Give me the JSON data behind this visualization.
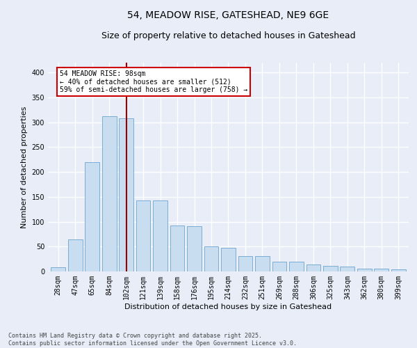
{
  "title_line1": "54, MEADOW RISE, GATESHEAD, NE9 6GE",
  "title_line2": "Size of property relative to detached houses in Gateshead",
  "xlabel": "Distribution of detached houses by size in Gateshead",
  "ylabel": "Number of detached properties",
  "categories": [
    "28sqm",
    "47sqm",
    "65sqm",
    "84sqm",
    "102sqm",
    "121sqm",
    "139sqm",
    "158sqm",
    "176sqm",
    "195sqm",
    "214sqm",
    "232sqm",
    "251sqm",
    "269sqm",
    "288sqm",
    "306sqm",
    "325sqm",
    "343sqm",
    "362sqm",
    "380sqm",
    "399sqm"
  ],
  "values": [
    8,
    65,
    220,
    312,
    308,
    143,
    143,
    93,
    91,
    50,
    48,
    31,
    31,
    20,
    19,
    14,
    11,
    10,
    5,
    5,
    4
  ],
  "bar_color": "#c9ddf0",
  "bar_edge_color": "#7aadd4",
  "vline_color": "#990000",
  "vline_x_idx": 4,
  "annotation_text": "54 MEADOW RISE: 98sqm\n← 40% of detached houses are smaller (512)\n59% of semi-detached houses are larger (758) →",
  "annotation_box_facecolor": "#ffffff",
  "annotation_box_edgecolor": "#cc0000",
  "background_color": "#e8edf8",
  "grid_color": "#ffffff",
  "footer_text": "Contains HM Land Registry data © Crown copyright and database right 2025.\nContains public sector information licensed under the Open Government Licence v3.0.",
  "ylim": [
    0,
    420
  ],
  "yticks": [
    0,
    50,
    100,
    150,
    200,
    250,
    300,
    350,
    400
  ],
  "title1_fontsize": 10,
  "title2_fontsize": 9,
  "xlabel_fontsize": 8,
  "ylabel_fontsize": 8,
  "tick_fontsize": 7,
  "footer_fontsize": 6
}
